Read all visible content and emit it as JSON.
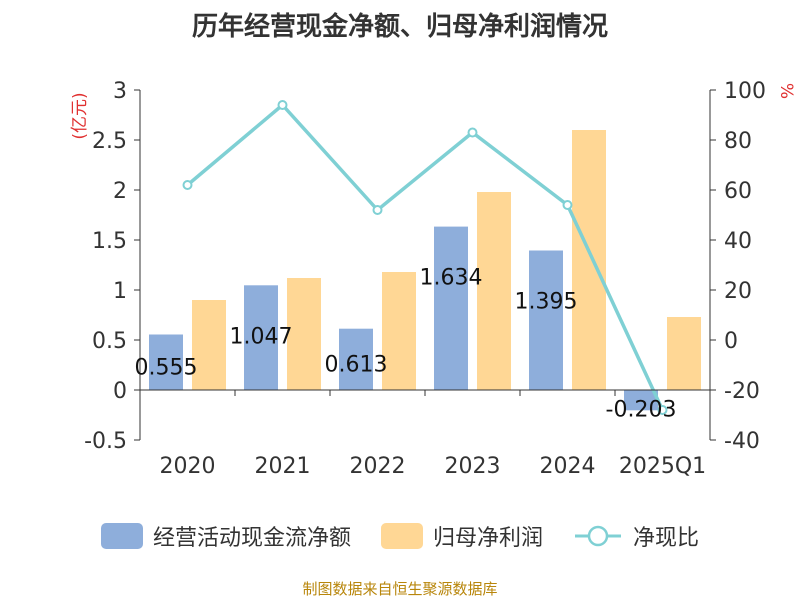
{
  "title": "历年经营现金净额、归母净利润情况",
  "source": "制图数据来自恒生聚源数据库",
  "colors": {
    "cash": "#8eaedb",
    "profit": "#ffd795",
    "ratio": "#7fd0d4",
    "axis_unit": "#e03030",
    "axis": "#333333"
  },
  "chart_data": {
    "type": "bar",
    "categories": [
      "2020",
      "2021",
      "2022",
      "2023",
      "2024",
      "2025Q1"
    ],
    "left_axis": {
      "unit": "(亿元)",
      "ylim": [
        -0.5,
        3
      ],
      "ticks": [
        "3",
        "2.5",
        "2",
        "1.5",
        "1",
        "0.5",
        "0",
        "-0.5"
      ]
    },
    "right_axis": {
      "unit": "%",
      "ylim": [
        -40,
        100
      ],
      "ticks": [
        "100",
        "80",
        "60",
        "40",
        "20",
        "0",
        "-20",
        "-40"
      ]
    },
    "series": [
      {
        "name": "经营活动现金流净额",
        "kind": "bar",
        "axis": "left",
        "values": [
          0.555,
          1.047,
          0.613,
          1.634,
          1.395,
          -0.203
        ],
        "labels": [
          "0.555",
          "1.047",
          "0.613",
          "1.634",
          "1.395",
          "-0.203"
        ]
      },
      {
        "name": "归母净利润",
        "kind": "bar",
        "axis": "left",
        "values": [
          0.9,
          1.12,
          1.18,
          1.98,
          2.6,
          0.73
        ]
      },
      {
        "name": "净现比",
        "kind": "line",
        "axis": "right",
        "values": [
          62,
          94,
          52,
          83,
          54,
          -28
        ]
      }
    ],
    "legend_position": "bottom",
    "grid": false
  }
}
